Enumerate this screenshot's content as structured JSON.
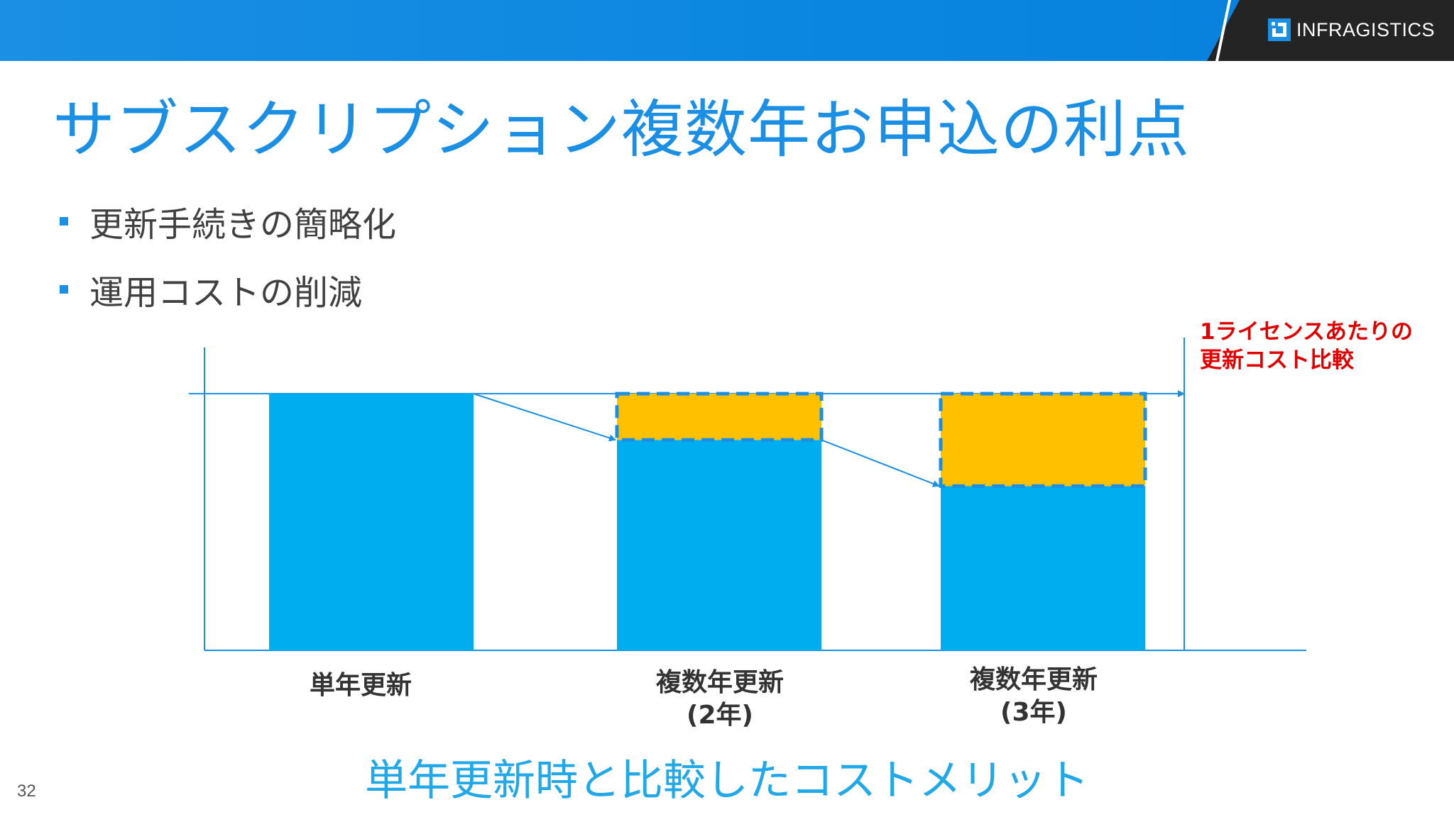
{
  "header": {
    "brand_name": "INFRAGISTICS",
    "brand_icon": "infragistics-logo-icon",
    "bar_color": "#0a86e0"
  },
  "slide": {
    "title": "サブスクリプション複数年お申込の利点",
    "bullets": [
      "更新手続きの簡略化",
      "運用コストの削減"
    ],
    "caption": "単年更新時と比較したコストメリット",
    "page_number": "32"
  },
  "chart_data": {
    "type": "bar",
    "stacked": true,
    "categories": [
      [
        "単年更新"
      ],
      [
        "複数年更新",
        "(2年)"
      ],
      [
        "複数年更新",
        "(3年)"
      ]
    ],
    "series": [
      {
        "values": [
          1.0,
          0.82,
          0.64
        ],
        "color": "#00adef"
      },
      {
        "values": [
          0,
          0.18,
          0.36
        ],
        "color": "#ffc000",
        "border": "dashed",
        "border_color": "#1a8fe3"
      }
    ],
    "reference_level": 1.0,
    "trend_arrows": true,
    "annotation": [
      "1ライセンスあたりの",
      "更新コスト比較"
    ],
    "annotation_color": "#e00000",
    "axis_color": "#1a8fe3",
    "ylim": [
      0,
      1.18
    ],
    "title": "",
    "xlabel": "",
    "ylabel": ""
  }
}
